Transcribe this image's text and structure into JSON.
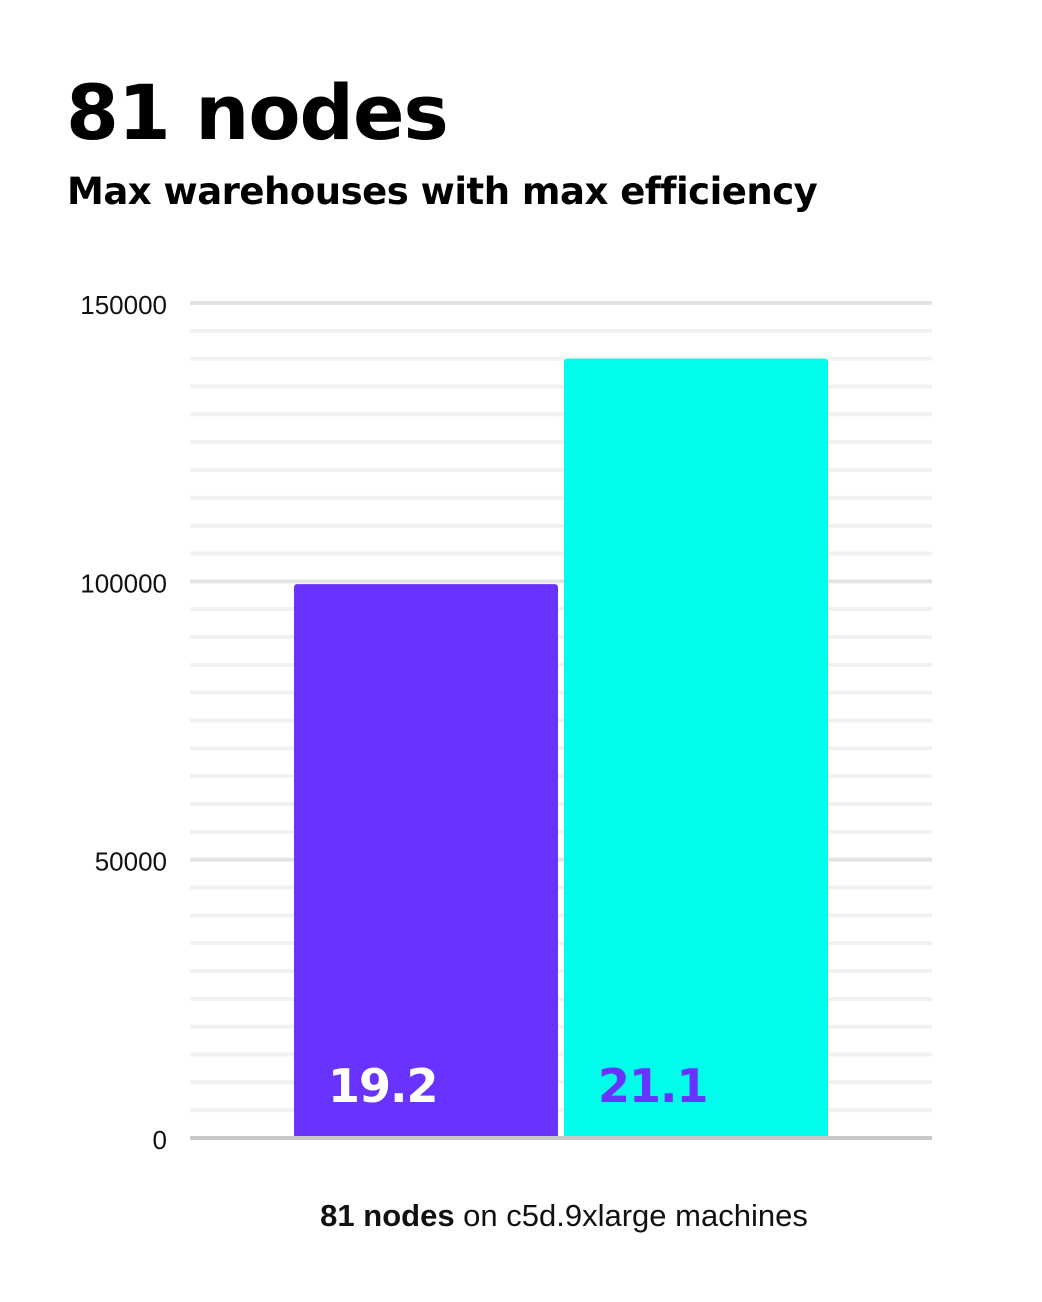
{
  "title": "81 nodes",
  "subtitle": "Max warehouses with max efficiency",
  "xlabel_bold": "81 nodes",
  "xlabel_rest": " on c5d.9xlarge machines",
  "chart_data": {
    "type": "bar",
    "title": "81 nodes",
    "subtitle": "Max warehouses with max efficiency",
    "xlabel": "81 nodes on c5d.9xlarge machines",
    "ylabel": "",
    "ylim": [
      0,
      150000
    ],
    "yticks": [
      0,
      50000,
      100000,
      150000
    ],
    "minor_grid_step": 5000,
    "grid": true,
    "categories": [
      "",
      ""
    ],
    "values": [
      99500,
      140000
    ],
    "data_labels": [
      "19.2",
      "21.1"
    ],
    "colors": [
      "#6933ff",
      "#00fcea"
    ],
    "label_colors": [
      "#ffffff",
      "#6933ff"
    ]
  }
}
